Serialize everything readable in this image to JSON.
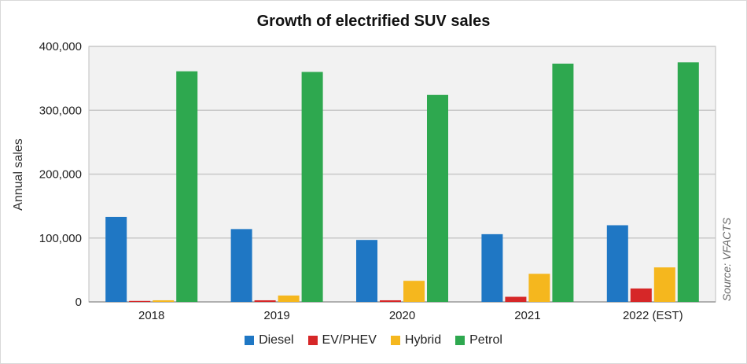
{
  "chart_data": {
    "type": "bar",
    "title": "Growth of electrified SUV sales",
    "ylabel": "Annual sales",
    "xlabel": "",
    "source": "Source: VFACTS",
    "categories": [
      "2018",
      "2019",
      "2020",
      "2021",
      "2022 (EST)"
    ],
    "ylim": [
      0,
      400000
    ],
    "yticks": [
      0,
      100000,
      200000,
      300000,
      400000
    ],
    "ytick_labels": [
      "0",
      "100,000",
      "200,000",
      "300,000",
      "400,000"
    ],
    "grid": true,
    "legend_position": "bottom",
    "series": [
      {
        "name": "Diesel",
        "color": "#1f77c4",
        "values": [
          133000,
          114000,
          97000,
          106000,
          120000
        ]
      },
      {
        "name": "EV/PHEV",
        "color": "#d62728",
        "values": [
          1500,
          2500,
          2500,
          8000,
          21000
        ]
      },
      {
        "name": "Hybrid",
        "color": "#f5b71e",
        "values": [
          2500,
          10000,
          33000,
          44000,
          54000
        ]
      },
      {
        "name": "Petrol",
        "color": "#2ea84f",
        "values": [
          361000,
          360000,
          324000,
          373000,
          375000
        ]
      }
    ]
  }
}
